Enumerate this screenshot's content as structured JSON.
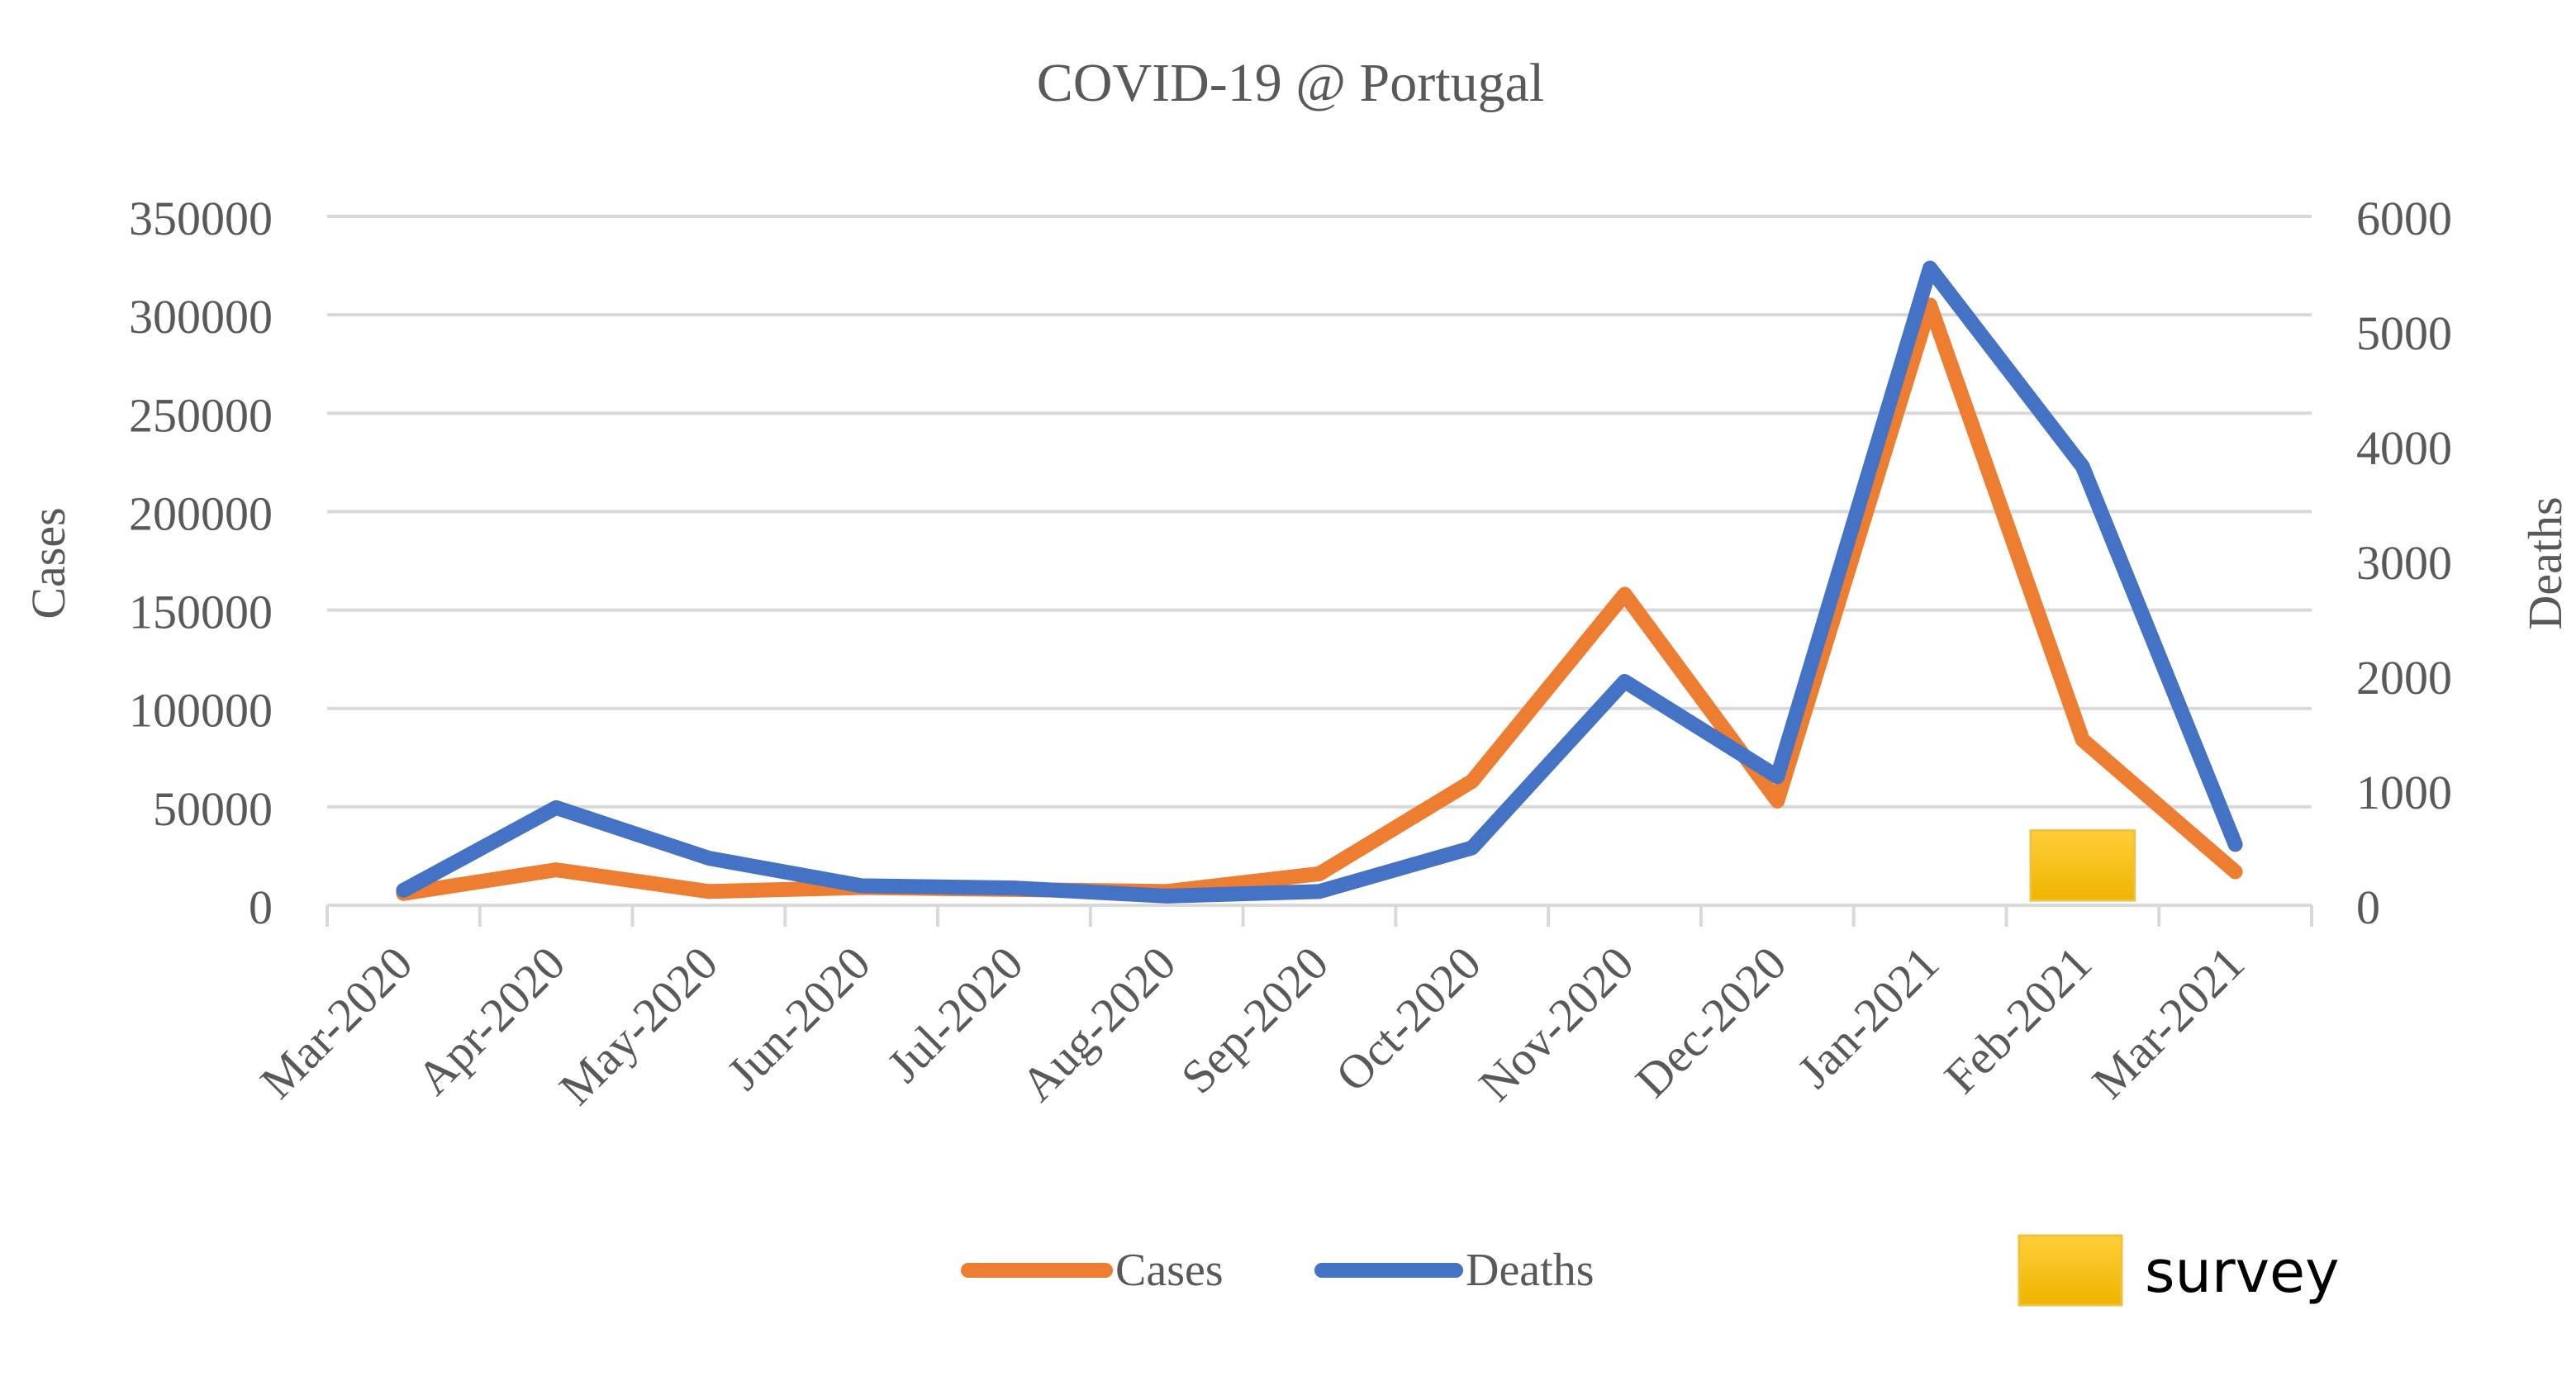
{
  "chart_data": {
    "type": "line",
    "title": "COVID-19 @ Portugal",
    "categories": [
      "Mar-2020",
      "Apr-2020",
      "May-2020",
      "Jun-2020",
      "Jul-2020",
      "Aug-2020",
      "Sep-2020",
      "Oct-2020",
      "Nov-2020",
      "Dec-2020",
      "Jan-2021",
      "Feb-2021",
      "Mar-2021"
    ],
    "y_left": {
      "label": "Cases",
      "lim": [
        0,
        350000
      ],
      "ticks": [
        0,
        50000,
        100000,
        150000,
        200000,
        250000,
        300000,
        350000
      ],
      "tick_labels": [
        "0",
        "50000",
        "100000",
        "150000",
        "200000",
        "250000",
        "300000",
        "350000"
      ]
    },
    "y_right": {
      "label": "Deaths",
      "lim": [
        0,
        6000
      ],
      "ticks": [
        0,
        1000,
        2000,
        3000,
        4000,
        5000,
        6000
      ],
      "tick_labels": [
        "0",
        "1000",
        "2000",
        "3000",
        "4000",
        "5000",
        "6000"
      ]
    },
    "series": [
      {
        "name": "Cases",
        "axis": "left",
        "color": "#ED7D31",
        "values": [
          6000,
          18000,
          7000,
          9000,
          8000,
          7000,
          16000,
          63000,
          158000,
          53000,
          305000,
          84000,
          17000
        ]
      },
      {
        "name": "Deaths",
        "axis": "right",
        "color": "#4472C4",
        "values": [
          130,
          850,
          410,
          170,
          150,
          80,
          120,
          500,
          1950,
          1120,
          5550,
          3820,
          530
        ]
      }
    ],
    "survey": {
      "label": "survey",
      "color": "#FFC000",
      "category_index": 11,
      "value_right": 650
    },
    "grid": true,
    "legend_position": "bottom"
  }
}
